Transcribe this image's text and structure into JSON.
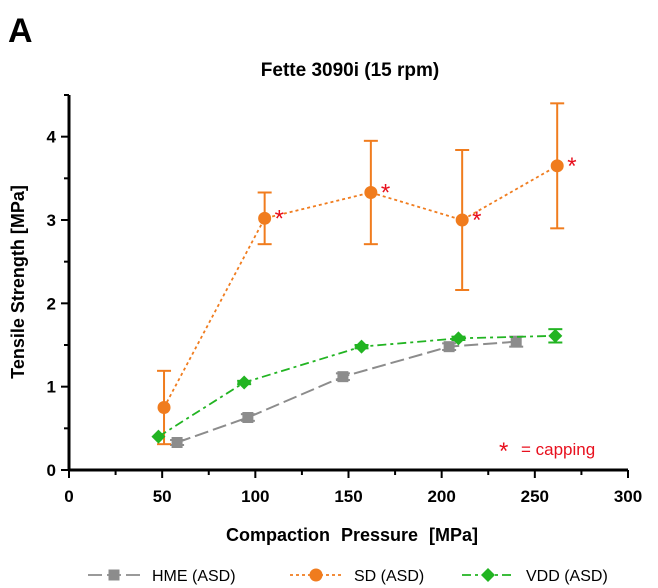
{
  "panel_label": "A",
  "chart_data": {
    "type": "line",
    "title": "Fette 3090i (15 rpm)",
    "xlabel": "Compaction Pressure [MPa]",
    "ylabel": "Tensile Strength [MPa]",
    "xlim": [
      0,
      300
    ],
    "ylim": [
      0,
      4.5
    ],
    "xticks": [
      0,
      50,
      100,
      150,
      200,
      250,
      300
    ],
    "yticks": [
      0,
      1,
      2,
      3,
      4
    ],
    "grid": false,
    "legend_position": "bottom",
    "series": [
      {
        "name": "HME (ASD)",
        "color": "#8c8c8c",
        "marker": "square",
        "line_style": "dashed",
        "x": [
          58,
          96,
          147,
          204,
          240
        ],
        "y": [
          0.33,
          0.63,
          1.12,
          1.48,
          1.54
        ],
        "err": [
          0.03,
          0.04,
          0.04,
          0.04,
          0.06
        ]
      },
      {
        "name": "SD (ASD)",
        "color": "#f07c1e",
        "marker": "circle",
        "line_style": "dotted",
        "x": [
          51,
          105,
          162,
          211,
          262
        ],
        "y": [
          0.75,
          3.02,
          3.33,
          3.0,
          3.65
        ],
        "err": [
          0.44,
          0.31,
          0.62,
          0.84,
          0.75
        ]
      },
      {
        "name": "VDD (ASD)",
        "color": "#22b422",
        "marker": "diamond",
        "line_style": "dashdot",
        "x": [
          48,
          94,
          157,
          209,
          261
        ],
        "y": [
          0.4,
          1.05,
          1.48,
          1.58,
          1.61
        ],
        "err": [
          0.0,
          0.02,
          0.02,
          0.02,
          0.08
        ]
      }
    ],
    "annotations": {
      "capping_marker": "*",
      "capping_label": "= capping",
      "capping_color": "#e8101e",
      "capped_points_series": "SD (ASD)",
      "capped_points_x": [
        105,
        162,
        211,
        262
      ]
    }
  }
}
